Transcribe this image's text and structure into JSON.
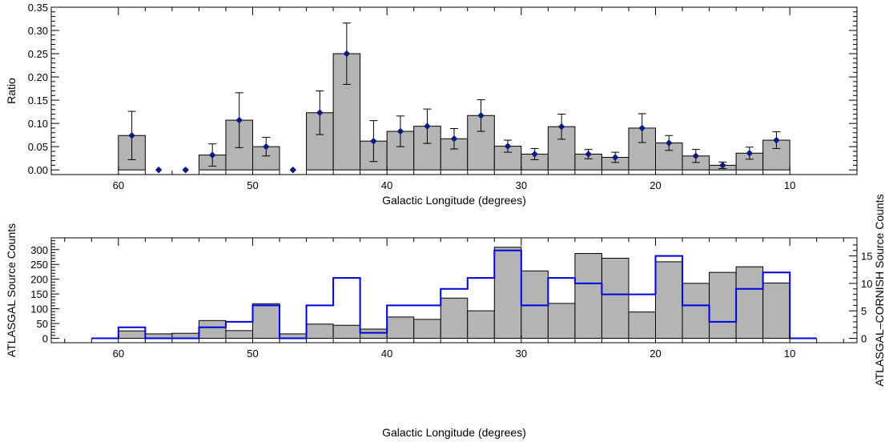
{
  "chart_data": [
    {
      "type": "bar",
      "xlabel": "Galactic Longitude (degrees)",
      "ylabel": "Ratio",
      "xlim": [
        65,
        5
      ],
      "ylim": [
        -0.01,
        0.35
      ],
      "bin_width": 2,
      "x_ticks": [
        "60",
        "50",
        "40",
        "30",
        "20",
        "10"
      ],
      "y_ticks": [
        "0.00",
        "0.05",
        "0.10",
        "0.15",
        "0.20",
        "0.25",
        "0.30",
        "0.35"
      ],
      "bar_color": "#b4b4b4",
      "marker_color": "#0b1a80",
      "bins": [
        {
          "x": 59,
          "value": 0.074,
          "err": 0.052
        },
        {
          "x": 57,
          "value": 0.0,
          "err": 0.0
        },
        {
          "x": 55,
          "value": 0.0,
          "err": 0.0
        },
        {
          "x": 53,
          "value": 0.032,
          "err": 0.024
        },
        {
          "x": 51,
          "value": 0.107,
          "err": 0.059
        },
        {
          "x": 49,
          "value": 0.05,
          "err": 0.02
        },
        {
          "x": 47,
          "value": 0.0,
          "err": 0.0
        },
        {
          "x": 45,
          "value": 0.123,
          "err": 0.047
        },
        {
          "x": 43,
          "value": 0.25,
          "err": 0.066
        },
        {
          "x": 41,
          "value": 0.062,
          "err": 0.044
        },
        {
          "x": 39,
          "value": 0.083,
          "err": 0.033
        },
        {
          "x": 37,
          "value": 0.094,
          "err": 0.037
        },
        {
          "x": 35,
          "value": 0.067,
          "err": 0.022
        },
        {
          "x": 33,
          "value": 0.117,
          "err": 0.034
        },
        {
          "x": 31,
          "value": 0.051,
          "err": 0.013
        },
        {
          "x": 29,
          "value": 0.034,
          "err": 0.012
        },
        {
          "x": 27,
          "value": 0.093,
          "err": 0.027
        },
        {
          "x": 25,
          "value": 0.034,
          "err": 0.01
        },
        {
          "x": 23,
          "value": 0.027,
          "err": 0.011
        },
        {
          "x": 21,
          "value": 0.09,
          "err": 0.031
        },
        {
          "x": 19,
          "value": 0.058,
          "err": 0.016
        },
        {
          "x": 17,
          "value": 0.03,
          "err": 0.014
        },
        {
          "x": 15,
          "value": 0.01,
          "err": 0.007
        },
        {
          "x": 13,
          "value": 0.036,
          "err": 0.013
        },
        {
          "x": 11,
          "value": 0.064,
          "err": 0.018
        }
      ]
    },
    {
      "type": "bar",
      "xlabel": "Galactic Longitude (degrees)",
      "ylabel": "ATLASGAL Source Counts",
      "y2label": "ATLASGAL–CORNISH Source Counts",
      "xlim": [
        65,
        5
      ],
      "ylim": [
        -15,
        340
      ],
      "y2lim": [
        -0.8,
        18.3
      ],
      "bin_width": 2,
      "x_ticks": [
        "60",
        "50",
        "40",
        "30",
        "20",
        "10"
      ],
      "y_ticks": [
        "0",
        "50",
        "100",
        "150",
        "200",
        "250",
        "300"
      ],
      "y2_ticks": [
        "0",
        "5",
        "10",
        "15"
      ],
      "bar_color": "#b4b4b4",
      "line_color": "#0000e0",
      "categories": [
        59,
        57,
        55,
        53,
        51,
        49,
        47,
        45,
        43,
        41,
        39,
        37,
        35,
        33,
        31,
        29,
        27,
        25,
        23,
        21,
        19,
        17,
        15,
        13,
        11
      ],
      "series": [
        {
          "name": "ATLASGAL",
          "values": [
            25,
            15,
            17,
            60,
            26,
            117,
            15,
            48,
            44,
            31,
            72,
            64,
            136,
            93,
            308,
            228,
            118,
            287,
            271,
            89,
            259,
            186,
            223,
            242,
            187
          ]
        },
        {
          "name": "ATLASGAL-CORNISH",
          "values": [
            2,
            0,
            0,
            2,
            3,
            6,
            0,
            6,
            11,
            1,
            6,
            6,
            9,
            11,
            16,
            6,
            11,
            10,
            8,
            8,
            15,
            6,
            3,
            9,
            12
          ]
        }
      ]
    }
  ]
}
